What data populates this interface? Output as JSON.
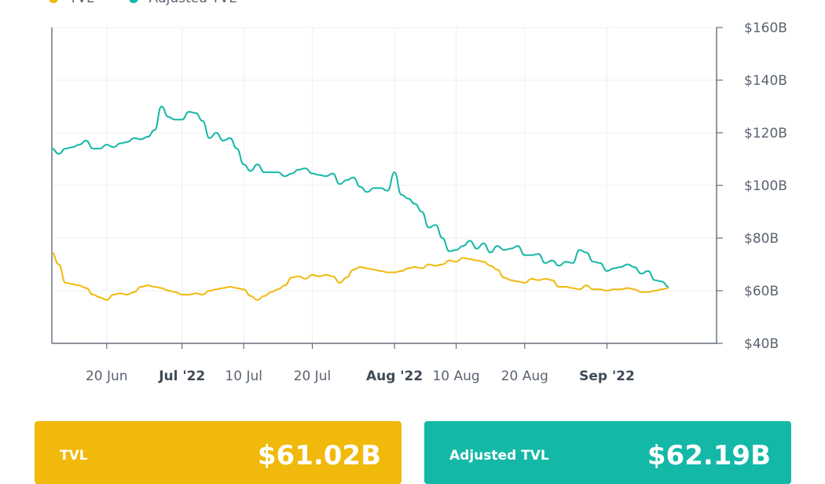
{
  "chart_data": {
    "type": "line",
    "x_range": [
      "2022-06-12",
      "2022-09-17"
    ],
    "ylim": [
      40,
      160
    ],
    "y_unit": "B",
    "y_ticks": [
      40,
      60,
      80,
      100,
      120,
      140,
      160
    ],
    "y_tick_labels": [
      "$40B",
      "$60B",
      "$80B",
      "$100B",
      "$120B",
      "$140B",
      "$160B"
    ],
    "x_ticks": [
      {
        "date": "2022-06-20",
        "label": "20 Jun",
        "bold": false
      },
      {
        "date": "2022-07-01",
        "label": "Jul '22",
        "bold": true
      },
      {
        "date": "2022-07-10",
        "label": "10 Jul",
        "bold": false
      },
      {
        "date": "2022-07-20",
        "label": "20 Jul",
        "bold": false
      },
      {
        "date": "2022-08-01",
        "label": "Aug '22",
        "bold": true
      },
      {
        "date": "2022-08-10",
        "label": "10 Aug",
        "bold": false
      },
      {
        "date": "2022-08-20",
        "label": "20 Aug",
        "bold": false
      },
      {
        "date": "2022-09-01",
        "label": "Sep '22",
        "bold": true
      }
    ],
    "grid": true,
    "legend": "top-left",
    "series": [
      {
        "name": "TVL",
        "color": "#f0b90b",
        "points": [
          [
            "2022-06-12",
            74.5
          ],
          [
            "2022-06-13",
            70
          ],
          [
            "2022-06-14",
            63
          ],
          [
            "2022-06-15",
            62.5
          ],
          [
            "2022-06-16",
            62
          ],
          [
            "2022-06-17",
            61
          ],
          [
            "2022-06-18",
            58.5
          ],
          [
            "2022-06-19",
            57.5
          ],
          [
            "2022-06-20",
            56.5
          ],
          [
            "2022-06-21",
            58.5
          ],
          [
            "2022-06-22",
            59
          ],
          [
            "2022-06-23",
            58.5
          ],
          [
            "2022-06-24",
            59.5
          ],
          [
            "2022-06-25",
            61.5
          ],
          [
            "2022-06-26",
            62
          ],
          [
            "2022-06-27",
            61.5
          ],
          [
            "2022-06-28",
            61
          ],
          [
            "2022-06-29",
            60
          ],
          [
            "2022-06-30",
            59.5
          ],
          [
            "2022-07-01",
            58.5
          ],
          [
            "2022-07-02",
            58.5
          ],
          [
            "2022-07-03",
            59
          ],
          [
            "2022-07-04",
            58.5
          ],
          [
            "2022-07-05",
            60
          ],
          [
            "2022-07-06",
            60.5
          ],
          [
            "2022-07-07",
            61
          ],
          [
            "2022-07-08",
            61.5
          ],
          [
            "2022-07-09",
            61
          ],
          [
            "2022-07-10",
            60.5
          ],
          [
            "2022-07-11",
            58
          ],
          [
            "2022-07-12",
            56.5
          ],
          [
            "2022-07-13",
            58
          ],
          [
            "2022-07-14",
            59.5
          ],
          [
            "2022-07-15",
            60.5
          ],
          [
            "2022-07-16",
            62
          ],
          [
            "2022-07-17",
            65
          ],
          [
            "2022-07-18",
            65.5
          ],
          [
            "2022-07-19",
            64.5
          ],
          [
            "2022-07-20",
            66
          ],
          [
            "2022-07-21",
            65.5
          ],
          [
            "2022-07-22",
            66
          ],
          [
            "2022-07-23",
            65.5
          ],
          [
            "2022-07-24",
            63
          ],
          [
            "2022-07-25",
            65
          ],
          [
            "2022-07-26",
            68
          ],
          [
            "2022-07-27",
            69
          ],
          [
            "2022-07-28",
            68.5
          ],
          [
            "2022-07-29",
            68
          ],
          [
            "2022-07-30",
            67.5
          ],
          [
            "2022-07-31",
            67
          ],
          [
            "2022-08-01",
            67
          ],
          [
            "2022-08-02",
            67.5
          ],
          [
            "2022-08-03",
            68.5
          ],
          [
            "2022-08-04",
            69
          ],
          [
            "2022-08-05",
            68.5
          ],
          [
            "2022-08-06",
            70
          ],
          [
            "2022-08-07",
            69.5
          ],
          [
            "2022-08-08",
            70
          ],
          [
            "2022-08-09",
            71.5
          ],
          [
            "2022-08-10",
            71
          ],
          [
            "2022-08-11",
            72.5
          ],
          [
            "2022-08-12",
            72
          ],
          [
            "2022-08-13",
            71.5
          ],
          [
            "2022-08-14",
            71
          ],
          [
            "2022-08-15",
            69.5
          ],
          [
            "2022-08-16",
            68
          ],
          [
            "2022-08-17",
            65
          ],
          [
            "2022-08-18",
            64
          ],
          [
            "2022-08-19",
            63.5
          ],
          [
            "2022-08-20",
            63
          ],
          [
            "2022-08-21",
            64.5
          ],
          [
            "2022-08-22",
            64
          ],
          [
            "2022-08-23",
            64.5
          ],
          [
            "2022-08-24",
            64
          ],
          [
            "2022-08-25",
            61.5
          ],
          [
            "2022-08-26",
            61.5
          ],
          [
            "2022-08-27",
            61
          ],
          [
            "2022-08-28",
            60.5
          ],
          [
            "2022-08-29",
            62
          ],
          [
            "2022-08-30",
            60.5
          ],
          [
            "2022-08-31",
            60.5
          ],
          [
            "2022-09-01",
            60
          ],
          [
            "2022-09-02",
            60.5
          ],
          [
            "2022-09-03",
            60.5
          ],
          [
            "2022-09-04",
            61
          ],
          [
            "2022-09-05",
            60.5
          ],
          [
            "2022-09-06",
            59.5
          ],
          [
            "2022-09-07",
            59.5
          ],
          [
            "2022-09-08",
            60
          ],
          [
            "2022-09-09",
            60.5
          ],
          [
            "2022-09-10",
            61
          ]
        ]
      },
      {
        "name": "Adjusted TVL",
        "color": "#14b8a6",
        "points": [
          [
            "2022-06-12",
            114
          ],
          [
            "2022-06-13",
            112
          ],
          [
            "2022-06-14",
            114
          ],
          [
            "2022-06-15",
            114.5
          ],
          [
            "2022-06-16",
            115.5
          ],
          [
            "2022-06-17",
            117
          ],
          [
            "2022-06-18",
            114
          ],
          [
            "2022-06-19",
            114
          ],
          [
            "2022-06-20",
            115.5
          ],
          [
            "2022-06-21",
            114.5
          ],
          [
            "2022-06-22",
            116
          ],
          [
            "2022-06-23",
            116.5
          ],
          [
            "2022-06-24",
            118
          ],
          [
            "2022-06-25",
            117.5
          ],
          [
            "2022-06-26",
            118.5
          ],
          [
            "2022-06-27",
            121
          ],
          [
            "2022-06-28",
            130
          ],
          [
            "2022-06-29",
            126
          ],
          [
            "2022-06-30",
            125
          ],
          [
            "2022-07-01",
            125
          ],
          [
            "2022-07-02",
            128
          ],
          [
            "2022-07-03",
            127.5
          ],
          [
            "2022-07-04",
            124.5
          ],
          [
            "2022-07-05",
            118
          ],
          [
            "2022-07-06",
            120
          ],
          [
            "2022-07-07",
            117
          ],
          [
            "2022-07-08",
            118
          ],
          [
            "2022-07-09",
            114
          ],
          [
            "2022-07-10",
            108
          ],
          [
            "2022-07-11",
            105.5
          ],
          [
            "2022-07-12",
            108
          ],
          [
            "2022-07-13",
            105
          ],
          [
            "2022-07-14",
            105
          ],
          [
            "2022-07-15",
            105
          ],
          [
            "2022-07-16",
            103.5
          ],
          [
            "2022-07-17",
            104.5
          ],
          [
            "2022-07-18",
            106
          ],
          [
            "2022-07-19",
            106.5
          ],
          [
            "2022-07-20",
            104.5
          ],
          [
            "2022-07-21",
            104
          ],
          [
            "2022-07-22",
            103.5
          ],
          [
            "2022-07-23",
            104.5
          ],
          [
            "2022-07-24",
            100.5
          ],
          [
            "2022-07-25",
            102
          ],
          [
            "2022-07-26",
            103
          ],
          [
            "2022-07-27",
            99.5
          ],
          [
            "2022-07-28",
            97.5
          ],
          [
            "2022-07-29",
            99
          ],
          [
            "2022-07-30",
            99
          ],
          [
            "2022-07-31",
            98
          ],
          [
            "2022-08-01",
            105
          ],
          [
            "2022-08-02",
            96.5
          ],
          [
            "2022-08-03",
            95
          ],
          [
            "2022-08-04",
            93
          ],
          [
            "2022-08-05",
            90
          ],
          [
            "2022-08-06",
            84
          ],
          [
            "2022-08-07",
            85
          ],
          [
            "2022-08-08",
            80
          ],
          [
            "2022-08-09",
            75
          ],
          [
            "2022-08-10",
            75.5
          ],
          [
            "2022-08-11",
            77
          ],
          [
            "2022-08-12",
            79
          ],
          [
            "2022-08-13",
            76
          ],
          [
            "2022-08-14",
            78
          ],
          [
            "2022-08-15",
            74.5
          ],
          [
            "2022-08-16",
            77
          ],
          [
            "2022-08-17",
            75.5
          ],
          [
            "2022-08-18",
            76
          ],
          [
            "2022-08-19",
            77
          ],
          [
            "2022-08-20",
            73.5
          ],
          [
            "2022-08-21",
            73.5
          ],
          [
            "2022-08-22",
            74
          ],
          [
            "2022-08-23",
            70.5
          ],
          [
            "2022-08-24",
            71.5
          ],
          [
            "2022-08-25",
            69.5
          ],
          [
            "2022-08-26",
            71
          ],
          [
            "2022-08-27",
            70.5
          ],
          [
            "2022-08-28",
            75.5
          ],
          [
            "2022-08-29",
            74.5
          ],
          [
            "2022-08-30",
            71
          ],
          [
            "2022-08-31",
            70.5
          ],
          [
            "2022-09-01",
            67.5
          ],
          [
            "2022-09-02",
            68.5
          ],
          [
            "2022-09-03",
            69
          ],
          [
            "2022-09-04",
            70
          ],
          [
            "2022-09-05",
            69
          ],
          [
            "2022-09-06",
            66.5
          ],
          [
            "2022-09-07",
            67.5
          ],
          [
            "2022-09-08",
            64
          ],
          [
            "2022-09-09",
            63.5
          ],
          [
            "2022-09-10",
            61.5
          ]
        ]
      }
    ]
  },
  "legend": {
    "tvl_label": "TVL",
    "adjusted_label": "Adjusted TVL"
  },
  "cards": {
    "tvl": {
      "label": "TVL",
      "value": "$61.02B",
      "color": "#f0b90b"
    },
    "adjusted": {
      "label": "Adjusted TVL",
      "value": "$62.19B",
      "color": "#14b8a6"
    }
  }
}
